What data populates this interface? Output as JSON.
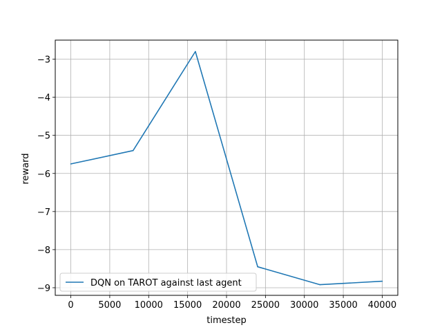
{
  "chart_data": {
    "type": "line",
    "title": "",
    "xlabel": "timestep",
    "ylabel": "reward",
    "xlim": [
      -2000,
      42000
    ],
    "ylim": [
      -9.2,
      -2.5
    ],
    "xticks": [
      0,
      5000,
      10000,
      15000,
      20000,
      25000,
      30000,
      35000,
      40000
    ],
    "xtick_labels": [
      "0",
      "5000",
      "10000",
      "15000",
      "20000",
      "25000",
      "30000",
      "35000",
      "40000"
    ],
    "yticks": [
      -9,
      -8,
      -7,
      -6,
      -5,
      -4,
      -3
    ],
    "ytick_labels": [
      "−9",
      "−8",
      "−7",
      "−6",
      "−5",
      "−4",
      "−3"
    ],
    "grid": true,
    "legend_position": "lower-left",
    "series": [
      {
        "name": "DQN on TAROT against last agent",
        "color": "#1f77b4",
        "x": [
          0,
          8000,
          16000,
          24000,
          32000,
          40000
        ],
        "y": [
          -5.75,
          -5.4,
          -2.8,
          -8.45,
          -8.92,
          -8.83
        ]
      }
    ]
  }
}
